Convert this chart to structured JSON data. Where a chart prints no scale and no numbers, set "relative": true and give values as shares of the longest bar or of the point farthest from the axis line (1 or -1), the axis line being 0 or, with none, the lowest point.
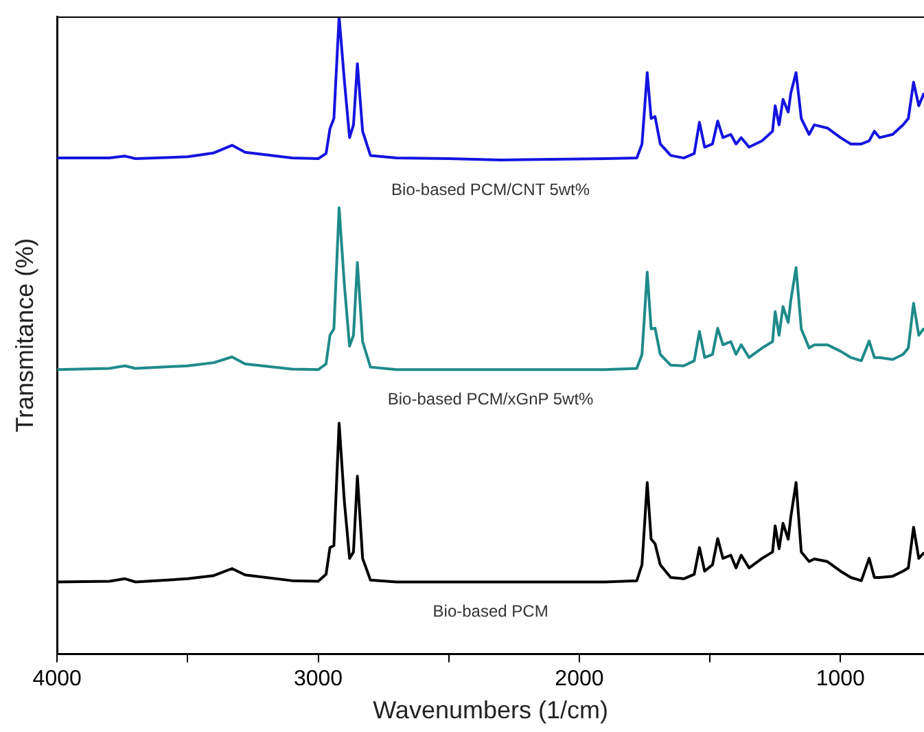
{
  "chart_data": {
    "type": "line",
    "xlabel": "Wavenumbers (1/cm)",
    "ylabel": "Transmitance (%)",
    "relative": true,
    "legend": false,
    "grid": false,
    "marker": "none",
    "line_style": "solid",
    "xlim": [
      4000,
      680
    ],
    "xticks": [
      4000,
      {
        "value": 3500,
        "label": null
      },
      3000,
      {
        "value": 2500,
        "label": null
      },
      2000,
      {
        "value": 1500,
        "label": null
      },
      1000
    ],
    "x": [
      4000,
      3800,
      3740,
      3700,
      3500,
      3400,
      3330,
      3280,
      3100,
      3000,
      2970,
      2955,
      2940,
      2920,
      2900,
      2880,
      2865,
      2850,
      2830,
      2800,
      2700,
      2500,
      2300,
      2100,
      1900,
      1780,
      1760,
      1740,
      1725,
      1710,
      1690,
      1650,
      1600,
      1560,
      1540,
      1520,
      1490,
      1470,
      1450,
      1420,
      1400,
      1380,
      1350,
      1300,
      1260,
      1250,
      1235,
      1220,
      1200,
      1190,
      1170,
      1150,
      1120,
      1100,
      1050,
      1000,
      960,
      920,
      890,
      870,
      850,
      800,
      760,
      740,
      720,
      700,
      680
    ],
    "series": [
      {
        "name": "Bio-based PCM/CNT 5wt%",
        "color": "#1414e0",
        "values": [
          0.778,
          0.778,
          0.781,
          0.777,
          0.78,
          0.786,
          0.798,
          0.787,
          0.778,
          0.777,
          0.785,
          0.824,
          0.84,
          1.0,
          0.9,
          0.81,
          0.83,
          0.926,
          0.82,
          0.782,
          0.778,
          0.777,
          0.775,
          0.776,
          0.777,
          0.778,
          0.8,
          0.912,
          0.84,
          0.843,
          0.8,
          0.782,
          0.778,
          0.785,
          0.834,
          0.795,
          0.8,
          0.836,
          0.81,
          0.815,
          0.8,
          0.81,
          0.795,
          0.805,
          0.82,
          0.86,
          0.83,
          0.87,
          0.85,
          0.88,
          0.912,
          0.84,
          0.815,
          0.83,
          0.825,
          0.81,
          0.8,
          0.8,
          0.805,
          0.82,
          0.81,
          0.815,
          0.83,
          0.84,
          0.897,
          0.86,
          0.88
        ]
      },
      {
        "name": "Bio-based PCM/xGnP 5wt%",
        "color": "#1f8a8a",
        "values": [
          0.446,
          0.448,
          0.452,
          0.448,
          0.452,
          0.457,
          0.466,
          0.455,
          0.447,
          0.446,
          0.455,
          0.5,
          0.51,
          0.7,
          0.58,
          0.483,
          0.5,
          0.614,
          0.49,
          0.45,
          0.446,
          0.446,
          0.446,
          0.446,
          0.446,
          0.448,
          0.47,
          0.599,
          0.51,
          0.511,
          0.47,
          0.453,
          0.452,
          0.46,
          0.506,
          0.465,
          0.47,
          0.511,
          0.485,
          0.49,
          0.47,
          0.485,
          0.465,
          0.48,
          0.49,
          0.537,
          0.5,
          0.545,
          0.52,
          0.555,
          0.606,
          0.51,
          0.48,
          0.485,
          0.485,
          0.475,
          0.465,
          0.46,
          0.491,
          0.465,
          0.465,
          0.462,
          0.47,
          0.48,
          0.55,
          0.5,
          0.511
        ]
      },
      {
        "name": "Bio-based PCM",
        "color": "#000000",
        "values": [
          0.113,
          0.114,
          0.118,
          0.113,
          0.118,
          0.123,
          0.134,
          0.124,
          0.115,
          0.114,
          0.125,
          0.167,
          0.17,
          0.362,
          0.24,
          0.15,
          0.16,
          0.279,
          0.15,
          0.116,
          0.113,
          0.113,
          0.113,
          0.113,
          0.113,
          0.115,
          0.14,
          0.269,
          0.18,
          0.173,
          0.14,
          0.12,
          0.118,
          0.125,
          0.167,
          0.13,
          0.14,
          0.181,
          0.15,
          0.155,
          0.135,
          0.155,
          0.135,
          0.15,
          0.16,
          0.201,
          0.165,
          0.205,
          0.18,
          0.215,
          0.269,
          0.16,
          0.145,
          0.149,
          0.145,
          0.13,
          0.12,
          0.115,
          0.15,
          0.12,
          0.12,
          0.122,
          0.13,
          0.135,
          0.199,
          0.15,
          0.159
        ]
      }
    ]
  }
}
